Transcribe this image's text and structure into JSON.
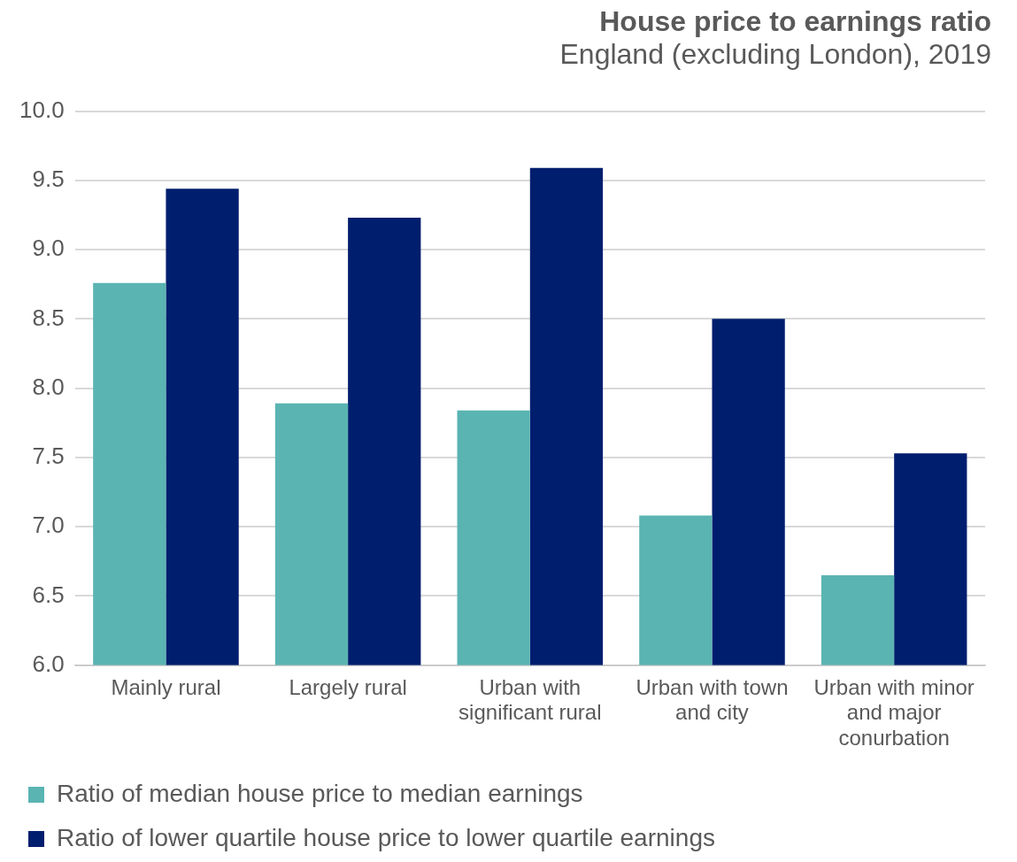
{
  "chart_data": {
    "type": "bar",
    "title": "House price to earnings ratio",
    "subtitle": "England (excluding London), 2019",
    "categories": [
      "Mainly rural",
      "Largely rural",
      "Urban with significant rural",
      "Urban with town and city",
      "Urban with minor and major conurbation"
    ],
    "series": [
      {
        "name": "Ratio of median house price to median earnings",
        "color": "#5ab4b2",
        "values": [
          8.76,
          7.89,
          7.84,
          7.08,
          6.65
        ]
      },
      {
        "name": "Ratio of lower quartile house price to lower quartile earnings",
        "color": "#001e6e",
        "values": [
          9.44,
          9.23,
          9.59,
          8.5,
          7.53
        ]
      }
    ],
    "ylim": [
      6.0,
      10.0
    ],
    "yticks": [
      {
        "value": 6,
        "label": "6.0"
      },
      {
        "value": 6.5,
        "label": "6.5"
      },
      {
        "value": 7,
        "label": "7.0"
      },
      {
        "value": 7.5,
        "label": "7.5"
      },
      {
        "value": 8,
        "label": "8.0"
      },
      {
        "value": 8.5,
        "label": "8.5"
      },
      {
        "value": 9,
        "label": "9.0"
      },
      {
        "value": 9.5,
        "label": "9.5"
      },
      {
        "value": 10,
        "label": "10.0"
      }
    ],
    "grid": "y",
    "legend": "bottom left"
  }
}
